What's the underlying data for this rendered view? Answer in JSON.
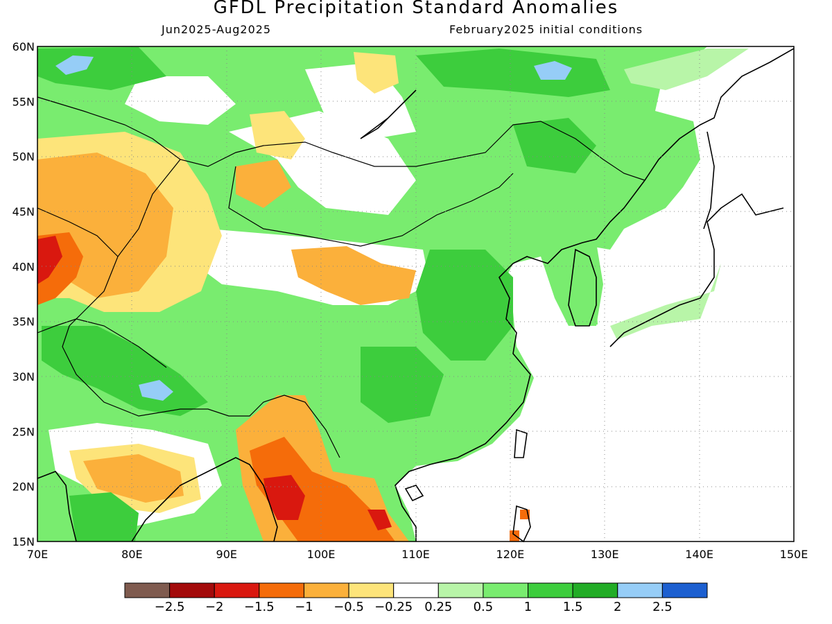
{
  "header": {
    "title": "GFDL Precipitation Standard Anomalies",
    "period": "Jun2025-Aug2025",
    "initial_conditions": "February2025 initial conditions"
  },
  "map": {
    "lon_range": [
      70,
      150
    ],
    "lat_range": [
      15,
      60
    ],
    "x_tick_labels": [
      "70E",
      "80E",
      "90E",
      "100E",
      "110E",
      "120E",
      "130E",
      "140E",
      "150E"
    ],
    "y_tick_labels": [
      "15N",
      "20N",
      "25N",
      "30N",
      "35N",
      "40N",
      "45N",
      "50N",
      "55N",
      "60N"
    ],
    "grid": "dotted"
  },
  "colorbar": {
    "colors": [
      "#7f5b4f",
      "#a30a0a",
      "#d9180f",
      "#f56c0a",
      "#fbb03b",
      "#fde47a",
      "#ffffff",
      "#b8f5a8",
      "#79ec6f",
      "#3dcd3d",
      "#22ac26",
      "#96cdf7",
      "#1c5fd0"
    ],
    "labels": [
      "-2.5",
      "-2",
      "-1.5",
      "-1",
      "-0.5",
      "-0.25",
      "0.25",
      "0.5",
      "1",
      "1.5",
      "2",
      "2.5"
    ]
  },
  "anomaly_colors": {
    "strong_dry": "#d9180f",
    "dry": "#f56c0a",
    "moderate_dry": "#fbb03b",
    "slight_dry": "#fde47a",
    "slight_wet": "#b8f5a8",
    "wet": "#79ec6f",
    "moderate_wet": "#3dcd3d",
    "strong_wet": "#22ac26",
    "very_wet": "#96cdf7"
  }
}
